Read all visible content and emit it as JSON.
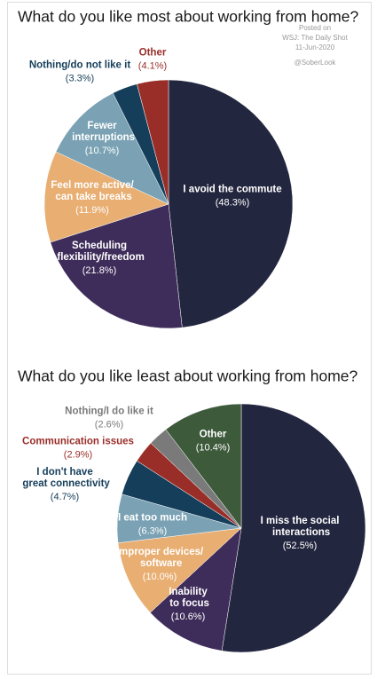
{
  "chart_data": [
    {
      "type": "pie",
      "title": "What do you like most about working from home?",
      "annotations": [
        "Posted on",
        "WSJ: The Daily Shot",
        "11-Jun-2020",
        "@SoberLook"
      ],
      "categories": [
        "I avoid the commute",
        "Scheduling\nflexibility/freedom",
        "Feel more active/\ncan take breaks",
        "Fewer\ninterruptions",
        "Nothing/do not like it",
        "Other"
      ],
      "values": [
        48.3,
        21.8,
        11.9,
        10.7,
        3.3,
        4.1
      ],
      "value_labels": [
        "(48.3%)",
        "(21.8%)",
        "(11.9%)",
        "(10.7%)",
        "(3.3%)",
        "(4.1%)"
      ],
      "colors": [
        "#23263f",
        "#3e2c5a",
        "#e8ae72",
        "#7aa2b4",
        "#153e5a",
        "#992e29"
      ]
    },
    {
      "type": "pie",
      "title": "What do you like least about working from home?",
      "categories": [
        "I miss the social\ninteractions",
        "Inability\nto focus",
        "Improper devices/\nsoftware",
        "I eat too much",
        "I don't have\ngreat connectivity",
        "Communication issues",
        "Nothing/I do like it",
        "Other"
      ],
      "values": [
        52.5,
        10.6,
        10.0,
        6.3,
        4.7,
        2.9,
        2.6,
        10.4
      ],
      "value_labels": [
        "(52.5%)",
        "(10.6%)",
        "(10.0%)",
        "(6.3%)",
        "(4.7%)",
        "(2.9%)",
        "(2.6%)",
        "(10.4%)"
      ],
      "colors": [
        "#23263f",
        "#3e2c5a",
        "#e8ae72",
        "#7aa2b4",
        "#153e5a",
        "#992e29",
        "#7a7a7a",
        "#3d5a3b"
      ]
    }
  ]
}
